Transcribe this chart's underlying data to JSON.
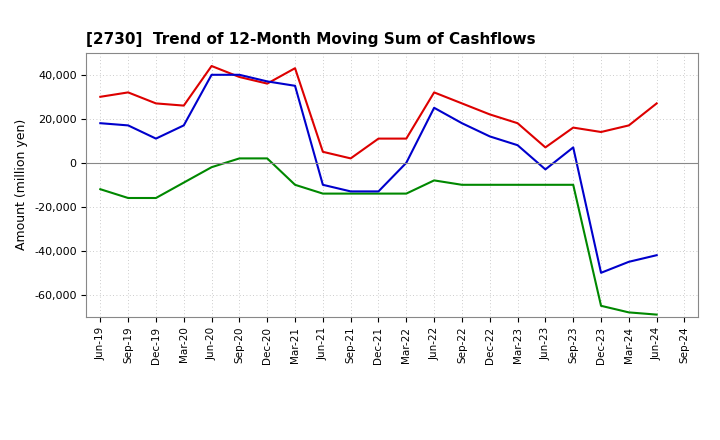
{
  "title": "[2730]  Trend of 12-Month Moving Sum of Cashflows",
  "ylabel": "Amount (million yen)",
  "background_color": "#ffffff",
  "plot_bg_color": "#ffffff",
  "grid_color": "#bbbbbb",
  "x_labels": [
    "Jun-19",
    "Sep-19",
    "Dec-19",
    "Mar-20",
    "Jun-20",
    "Sep-20",
    "Dec-20",
    "Mar-21",
    "Jun-21",
    "Sep-21",
    "Dec-21",
    "Mar-22",
    "Jun-22",
    "Sep-22",
    "Dec-22",
    "Mar-23",
    "Jun-23",
    "Sep-23",
    "Dec-23",
    "Mar-24",
    "Jun-24",
    "Sep-24"
  ],
  "operating_cashflow": [
    30000,
    32000,
    27000,
    26000,
    44000,
    39000,
    36000,
    43000,
    5000,
    2000,
    11000,
    11000,
    32000,
    27000,
    22000,
    18000,
    7000,
    16000,
    14000,
    17000,
    27000,
    null
  ],
  "investing_cashflow": [
    -12000,
    -16000,
    -16000,
    -9000,
    -2000,
    2000,
    2000,
    -10000,
    -14000,
    -14000,
    -14000,
    -14000,
    -8000,
    -10000,
    -10000,
    -10000,
    -10000,
    -10000,
    -65000,
    -68000,
    -69000,
    null
  ],
  "free_cashflow": [
    18000,
    17000,
    11000,
    17000,
    40000,
    40000,
    37000,
    35000,
    -10000,
    -13000,
    -13000,
    0,
    25000,
    18000,
    12000,
    8000,
    -3000,
    7000,
    -50000,
    -45000,
    -42000,
    null
  ],
  "ylim": [
    -70000,
    50000
  ],
  "yticks": [
    -60000,
    -40000,
    -20000,
    0,
    20000,
    40000
  ],
  "operating_color": "#dd0000",
  "investing_color": "#008800",
  "free_color": "#0000cc",
  "line_width": 1.5
}
